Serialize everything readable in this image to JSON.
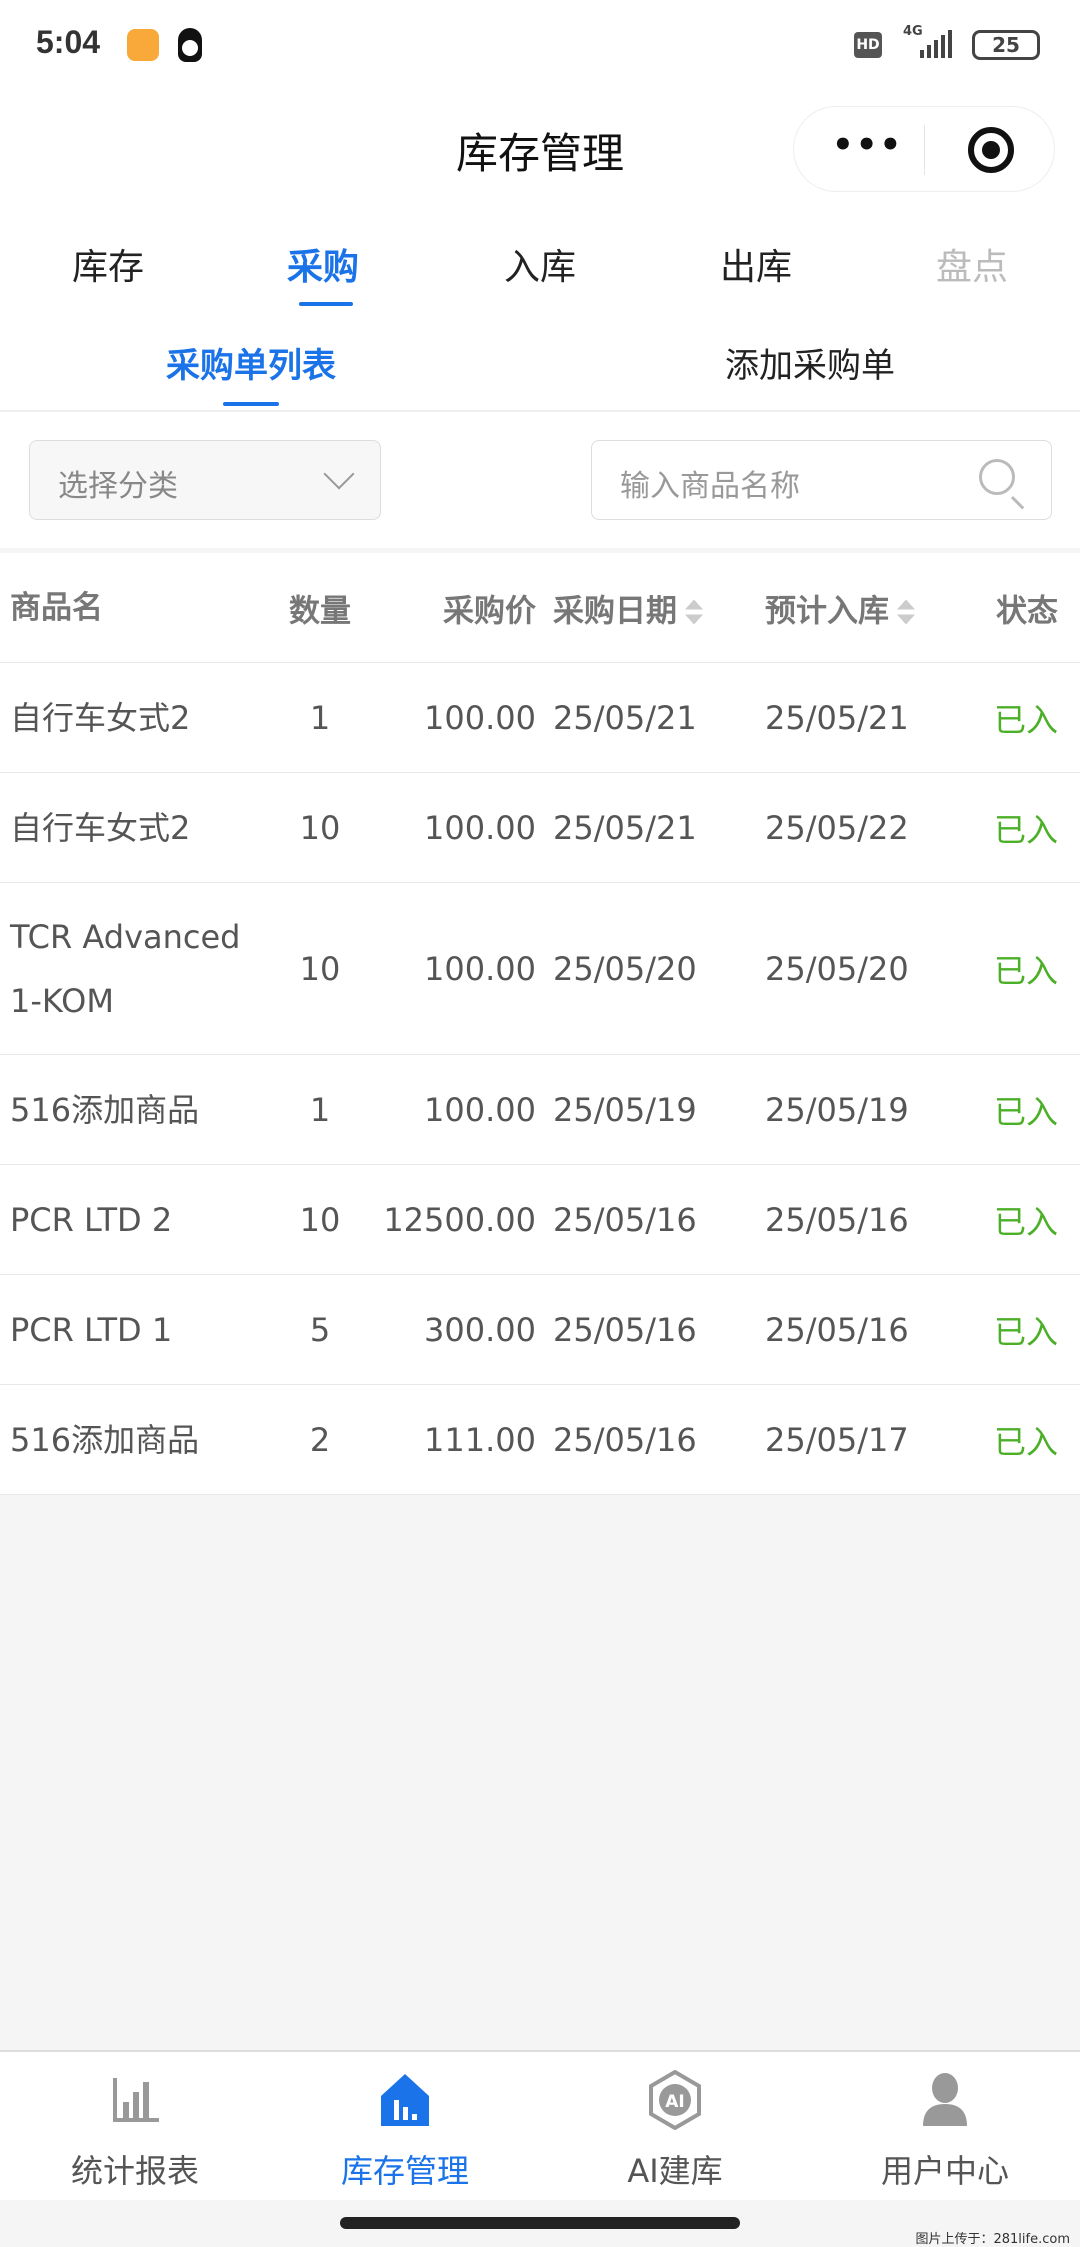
{
  "status_bar": {
    "time": "5:04",
    "hd": "HD",
    "network": "4G",
    "battery": "25"
  },
  "header": {
    "title": "库存管理"
  },
  "tabs": [
    {
      "label": "库存"
    },
    {
      "label": "采购",
      "active": true
    },
    {
      "label": "入库"
    },
    {
      "label": "出库"
    },
    {
      "label": "盘点",
      "disabled": true
    }
  ],
  "subtabs": [
    {
      "label": "采购单列表",
      "active": true
    },
    {
      "label": "添加采购单"
    }
  ],
  "filter": {
    "category_placeholder": "选择分类",
    "search_placeholder": "输入商品名称"
  },
  "table": {
    "headers": {
      "name": "商品名",
      "qty": "数量",
      "price": "采购价",
      "date": "采购日期",
      "expected": "预计入库",
      "status": "状态"
    },
    "rows": [
      {
        "name": "自行车女式2",
        "qty": "1",
        "price": "100.00",
        "date": "25/05/21",
        "expected": "25/05/21",
        "status": "已入"
      },
      {
        "name": "自行车女式2",
        "qty": "10",
        "price": "100.00",
        "date": "25/05/21",
        "expected": "25/05/22",
        "status": "已入"
      },
      {
        "name": "TCR Advanced 1-KOM",
        "qty": "10",
        "price": "100.00",
        "date": "25/05/20",
        "expected": "25/05/20",
        "status": "已入"
      },
      {
        "name": "516添加商品",
        "qty": "1",
        "price": "100.00",
        "date": "25/05/19",
        "expected": "25/05/19",
        "status": "已入"
      },
      {
        "name": "PCR LTD 2",
        "qty": "10",
        "price": "12500.00",
        "date": "25/05/16",
        "expected": "25/05/16",
        "status": "已入"
      },
      {
        "name": "PCR LTD 1",
        "qty": "5",
        "price": "300.00",
        "date": "25/05/16",
        "expected": "25/05/16",
        "status": "已入"
      },
      {
        "name": "516添加商品",
        "qty": "2",
        "price": "111.00",
        "date": "25/05/16",
        "expected": "25/05/17",
        "status": "已入"
      }
    ]
  },
  "bottom_nav": [
    {
      "label": "统计报表",
      "icon": "bar-chart-icon"
    },
    {
      "label": "库存管理",
      "icon": "warehouse-icon",
      "active": true
    },
    {
      "label": "AI建库",
      "icon": "ai-chip-icon"
    },
    {
      "label": "用户中心",
      "icon": "user-icon"
    }
  ],
  "colors": {
    "accent": "#1a73e8",
    "status_done": "#4caf28"
  },
  "watermark": "图片上传于：281life.com"
}
